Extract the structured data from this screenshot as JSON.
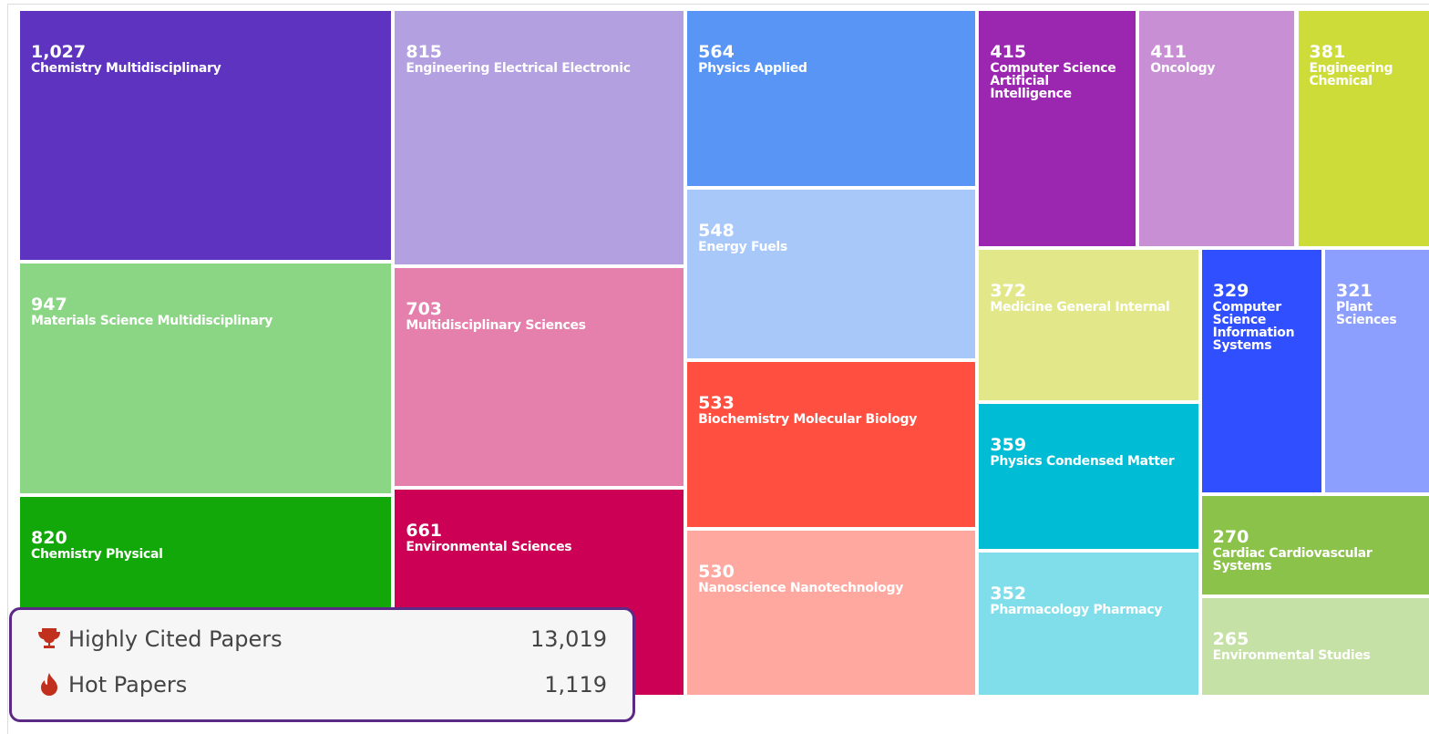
{
  "chart_data": {
    "type": "treemap",
    "categories": [
      "Chemistry Multidisciplinary",
      "Materials Science Multidisciplinary",
      "Chemistry Physical",
      "Engineering Electrical Electronic",
      "Multidisciplinary Sciences",
      "Environmental Sciences",
      "Physics Applied",
      "Energy Fuels",
      "Biochemistry Molecular Biology",
      "Nanoscience Nanotechnology",
      "Computer Science Artificial Intelligence",
      "Oncology",
      "Engineering Chemical",
      "Medicine General Internal",
      "Physics Condensed Matter",
      "Pharmacology Pharmacy",
      "Computer Science Information Systems",
      "Plant Sciences",
      "Cardiac Cardiovascular Systems",
      "Environmental Studies"
    ],
    "values": [
      1027,
      947,
      820,
      815,
      703,
      661,
      564,
      548,
      533,
      530,
      415,
      411,
      381,
      372,
      359,
      352,
      329,
      321,
      270,
      265
    ],
    "value_labels": [
      "1,027",
      "947",
      "820",
      "815",
      "703",
      "661",
      "564",
      "548",
      "533",
      "530",
      "415",
      "411",
      "381",
      "372",
      "359",
      "352",
      "329",
      "321",
      "270",
      "265"
    ],
    "colors": [
      "#5e33bf",
      "#8bd685",
      "#12a80a",
      "#b3a0e0",
      "#e57fab",
      "#cc0055",
      "#5895f5",
      "#a8c8fa",
      "#ff4f40",
      "#ffa8a0",
      "#9b27b0",
      "#c98fd4",
      "#cddc39",
      "#e2e889",
      "#00bcd4",
      "#80deea",
      "#304ffe",
      "#8c9efe",
      "#8bc34a",
      "#c5e1a5"
    ]
  },
  "panel": {
    "rows": [
      {
        "label": "Highly Cited Papers",
        "value": "13,019"
      },
      {
        "label": "Hot Papers",
        "value": "1,119"
      }
    ]
  }
}
